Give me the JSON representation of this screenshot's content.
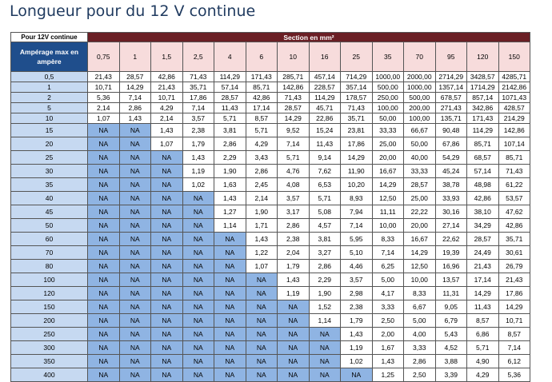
{
  "title": "Longueur pour du 12 V continue",
  "table": {
    "corner_label": "Pour 12V continue",
    "section_header": "Section en mm²",
    "amp_header": "Ampérage max en ampère",
    "sections": [
      "0,75",
      "1",
      "1,5",
      "2,5",
      "4",
      "6",
      "10",
      "16",
      "25",
      "35",
      "70",
      "95",
      "120",
      "150"
    ],
    "rows": [
      {
        "amp": "0,5",
        "values": [
          "21,43",
          "28,57",
          "42,86",
          "71,43",
          "114,29",
          "171,43",
          "285,71",
          "457,14",
          "714,29",
          "1000,00",
          "2000,00",
          "2714,29",
          "3428,57",
          "4285,71"
        ]
      },
      {
        "amp": "1",
        "values": [
          "10,71",
          "14,29",
          "21,43",
          "35,71",
          "57,14",
          "85,71",
          "142,86",
          "228,57",
          "357,14",
          "500,00",
          "1000,00",
          "1357,14",
          "1714,29",
          "2142,86"
        ]
      },
      {
        "amp": "2",
        "values": [
          "5,36",
          "7,14",
          "10,71",
          "17,86",
          "28,57",
          "42,86",
          "71,43",
          "114,29",
          "178,57",
          "250,00",
          "500,00",
          "678,57",
          "857,14",
          "1071,43"
        ]
      },
      {
        "amp": "5",
        "values": [
          "2,14",
          "2,86",
          "4,29",
          "7,14",
          "11,43",
          "17,14",
          "28,57",
          "45,71",
          "71,43",
          "100,00",
          "200,00",
          "271,43",
          "342,86",
          "428,57"
        ]
      },
      {
        "amp": "10",
        "values": [
          "1,07",
          "1,43",
          "2,14",
          "3,57",
          "5,71",
          "8,57",
          "14,29",
          "22,86",
          "35,71",
          "50,00",
          "100,00",
          "135,71",
          "171,43",
          "214,29"
        ]
      },
      {
        "amp": "15",
        "values": [
          "NA",
          "NA",
          "1,43",
          "2,38",
          "3,81",
          "5,71",
          "9,52",
          "15,24",
          "23,81",
          "33,33",
          "66,67",
          "90,48",
          "114,29",
          "142,86"
        ]
      },
      {
        "amp": "20",
        "values": [
          "NA",
          "NA",
          "1,07",
          "1,79",
          "2,86",
          "4,29",
          "7,14",
          "11,43",
          "17,86",
          "25,00",
          "50,00",
          "67,86",
          "85,71",
          "107,14"
        ]
      },
      {
        "amp": "25",
        "values": [
          "NA",
          "NA",
          "NA",
          "1,43",
          "2,29",
          "3,43",
          "5,71",
          "9,14",
          "14,29",
          "20,00",
          "40,00",
          "54,29",
          "68,57",
          "85,71"
        ]
      },
      {
        "amp": "30",
        "values": [
          "NA",
          "NA",
          "NA",
          "1,19",
          "1,90",
          "2,86",
          "4,76",
          "7,62",
          "11,90",
          "16,67",
          "33,33",
          "45,24",
          "57,14",
          "71,43"
        ]
      },
      {
        "amp": "35",
        "values": [
          "NA",
          "NA",
          "NA",
          "1,02",
          "1,63",
          "2,45",
          "4,08",
          "6,53",
          "10,20",
          "14,29",
          "28,57",
          "38,78",
          "48,98",
          "61,22"
        ]
      },
      {
        "amp": "40",
        "values": [
          "NA",
          "NA",
          "NA",
          "NA",
          "1,43",
          "2,14",
          "3,57",
          "5,71",
          "8,93",
          "12,50",
          "25,00",
          "33,93",
          "42,86",
          "53,57"
        ]
      },
      {
        "amp": "45",
        "values": [
          "NA",
          "NA",
          "NA",
          "NA",
          "1,27",
          "1,90",
          "3,17",
          "5,08",
          "7,94",
          "11,11",
          "22,22",
          "30,16",
          "38,10",
          "47,62"
        ]
      },
      {
        "amp": "50",
        "values": [
          "NA",
          "NA",
          "NA",
          "NA",
          "1,14",
          "1,71",
          "2,86",
          "4,57",
          "7,14",
          "10,00",
          "20,00",
          "27,14",
          "34,29",
          "42,86"
        ]
      },
      {
        "amp": "60",
        "values": [
          "NA",
          "NA",
          "NA",
          "NA",
          "NA",
          "1,43",
          "2,38",
          "3,81",
          "5,95",
          "8,33",
          "16,67",
          "22,62",
          "28,57",
          "35,71"
        ]
      },
      {
        "amp": "70",
        "values": [
          "NA",
          "NA",
          "NA",
          "NA",
          "NA",
          "1,22",
          "2,04",
          "3,27",
          "5,10",
          "7,14",
          "14,29",
          "19,39",
          "24,49",
          "30,61"
        ]
      },
      {
        "amp": "80",
        "values": [
          "NA",
          "NA",
          "NA",
          "NA",
          "NA",
          "1,07",
          "1,79",
          "2,86",
          "4,46",
          "6,25",
          "12,50",
          "16,96",
          "21,43",
          "26,79"
        ]
      },
      {
        "amp": "100",
        "values": [
          "NA",
          "NA",
          "NA",
          "NA",
          "NA",
          "NA",
          "1,43",
          "2,29",
          "3,57",
          "5,00",
          "10,00",
          "13,57",
          "17,14",
          "21,43"
        ]
      },
      {
        "amp": "120",
        "values": [
          "NA",
          "NA",
          "NA",
          "NA",
          "NA",
          "NA",
          "1,19",
          "1,90",
          "2,98",
          "4,17",
          "8,33",
          "11,31",
          "14,29",
          "17,86"
        ]
      },
      {
        "amp": "150",
        "values": [
          "NA",
          "NA",
          "NA",
          "NA",
          "NA",
          "NA",
          "NA",
          "1,52",
          "2,38",
          "3,33",
          "6,67",
          "9,05",
          "11,43",
          "14,29"
        ]
      },
      {
        "amp": "200",
        "values": [
          "NA",
          "NA",
          "NA",
          "NA",
          "NA",
          "NA",
          "NA",
          "1,14",
          "1,79",
          "2,50",
          "5,00",
          "6,79",
          "8,57",
          "10,71"
        ]
      },
      {
        "amp": "250",
        "values": [
          "NA",
          "NA",
          "NA",
          "NA",
          "NA",
          "NA",
          "NA",
          "NA",
          "1,43",
          "2,00",
          "4,00",
          "5,43",
          "6,86",
          "8,57"
        ]
      },
      {
        "amp": "300",
        "values": [
          "NA",
          "NA",
          "NA",
          "NA",
          "NA",
          "NA",
          "NA",
          "NA",
          "1,19",
          "1,67",
          "3,33",
          "4,52",
          "5,71",
          "7,14"
        ]
      },
      {
        "amp": "350",
        "values": [
          "NA",
          "NA",
          "NA",
          "NA",
          "NA",
          "NA",
          "NA",
          "NA",
          "1,02",
          "1,43",
          "2,86",
          "3,88",
          "4,90",
          "6,12"
        ]
      },
      {
        "amp": "400",
        "values": [
          "NA",
          "NA",
          "NA",
          "NA",
          "NA",
          "NA",
          "NA",
          "NA",
          "NA",
          "1,25",
          "2,50",
          "3,39",
          "4,29",
          "5,36"
        ]
      }
    ]
  },
  "colors": {
    "title_text": "#1f3a5f",
    "section_header_bg": "#6a1f25",
    "amp_header_bg": "#1f4e8c",
    "column_header_bg": "#f7dcdc",
    "row_label_bg": "#c6d9f1",
    "na_cell_bg": "#8fb4e3"
  }
}
